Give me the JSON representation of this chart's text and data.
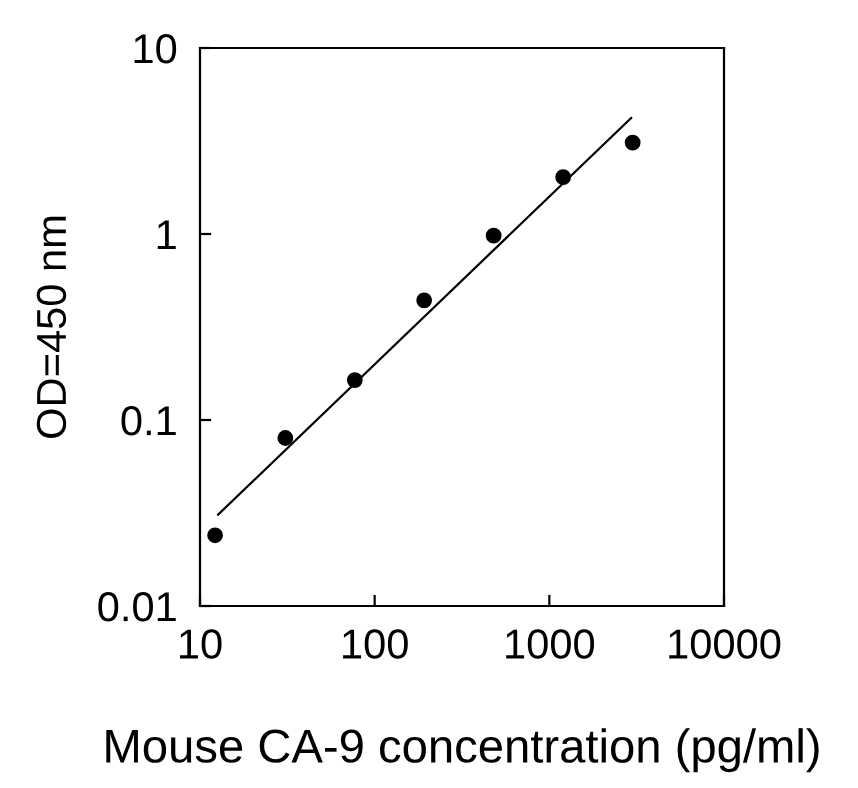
{
  "chart_data": {
    "type": "scatter",
    "xlabel": "Mouse CA-9 concentration (pg/ml)",
    "ylabel": "OD=450 nm",
    "log": "xy",
    "grid": false,
    "series": [
      {
        "marker": "circle",
        "color": "#000000",
        "x": [
          12.2,
          30.8,
          77,
          192,
          480,
          1200,
          3000
        ],
        "values": [
          0.024,
          0.08,
          0.164,
          0.44,
          0.98,
          2.02,
          3.1
        ]
      },
      {
        "type": "line",
        "marker": "none",
        "color": "#000000",
        "x": [
          12.7,
          2940
        ],
        "values": [
          0.031,
          4.2
        ]
      }
    ],
    "xlim": [
      10,
      10000
    ],
    "xticks": [
      10,
      100,
      1000,
      10000
    ],
    "ylim": [
      0.01,
      10
    ],
    "yticks": [
      0.01,
      0.1,
      1,
      10
    ]
  }
}
